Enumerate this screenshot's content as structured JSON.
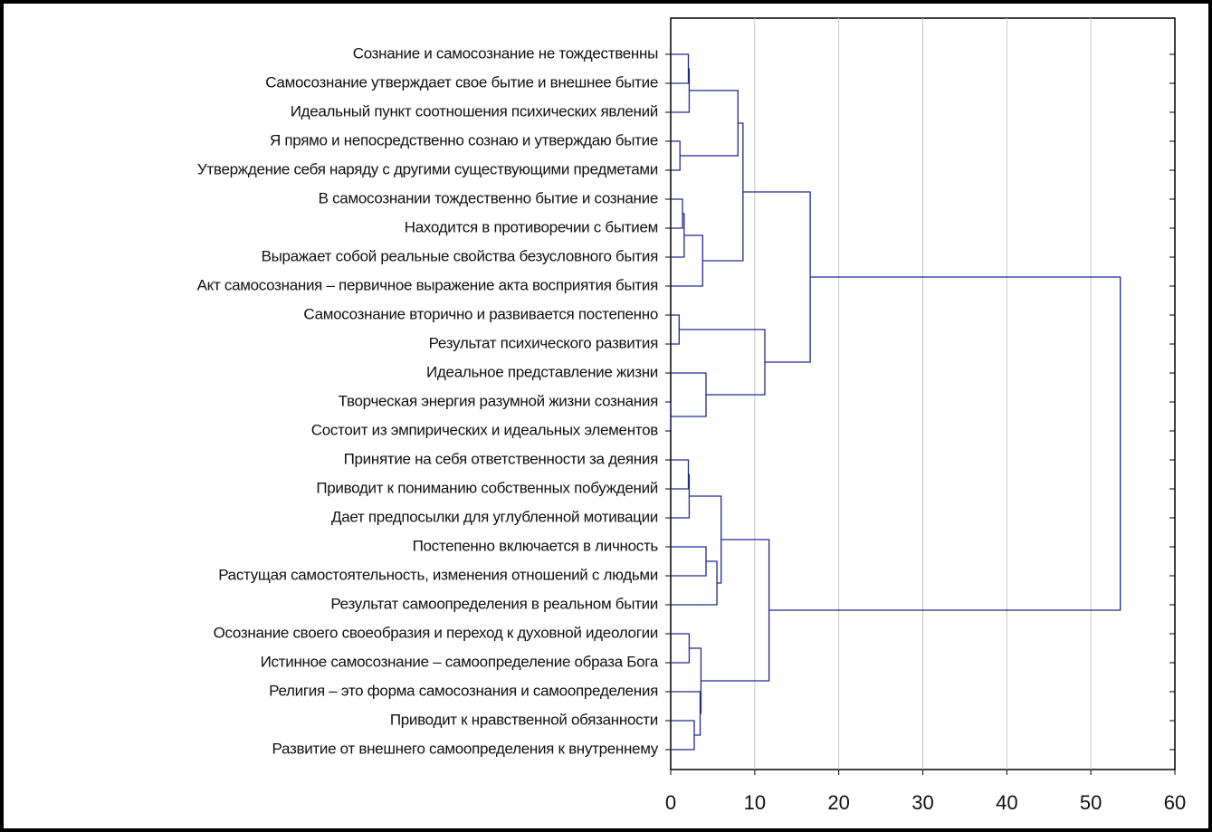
{
  "chart_data": {
    "type": "dendrogram",
    "categories": [
      "Сознание и самосознание не тождественны",
      "Самосознание утверждает свое бытие и внешнее бытие",
      "Идеальный пункт соотношения психических явлений",
      "Я прямо и непосредственно сознаю и утверждаю бытие",
      "Утверждение себя наряду с другими существующими предметами",
      "В самосознании тождественно бытие и сознание",
      "Находится в противоречии с бытием",
      "Выражает собой реальные свойства безусловного бытия",
      "Акт самосознания – первичное выражение акта восприятия бытия",
      "Самосознание вторично и развивается постепенно",
      "Результат психического развития",
      "Идеальное представление жизни",
      "Творческая энергия разумной жизни сознания",
      "Состоит из эмпирических и идеальных элементов",
      "Принятие на себя ответственности за деяния",
      "Приводит к пониманию собственных побуждений",
      "Дает предпосылки для углубленной мотивации",
      "Постепенно включается в личность",
      "Растущая самостоятельность, изменения отношений с людьми",
      "Результат самоопределения в реальном бытии",
      "Осознание своего своеобразия и переход к духовной идеологии",
      "Истинное самосознание – самоопределение образа Бога",
      "Религия – это форма самосознания и самоопределения",
      "Приводит к нравственной обязанности",
      "Развитие от внешнего самоопределения к внутреннему"
    ],
    "merges": [
      {
        "left": 0,
        "right": 1,
        "height": 2.1
      },
      {
        "left": 25,
        "right": 2,
        "height": 2.2
      },
      {
        "left": 3,
        "right": 4,
        "height": 1.1
      },
      {
        "left": 26,
        "right": 27,
        "height": 8.0
      },
      {
        "left": 5,
        "right": 6,
        "height": 1.4
      },
      {
        "left": 29,
        "right": 7,
        "height": 1.6
      },
      {
        "left": 30,
        "right": 8,
        "height": 3.8
      },
      {
        "left": 28,
        "right": 31,
        "height": 8.6
      },
      {
        "left": 9,
        "right": 10,
        "height": 1.0
      },
      {
        "left": 12,
        "right": 13,
        "height": 0
      },
      {
        "left": 11,
        "right": 34,
        "height": 4.2
      },
      {
        "left": 33,
        "right": 35,
        "height": 11.2
      },
      {
        "left": 32,
        "right": 36,
        "height": 16.6
      },
      {
        "left": 14,
        "right": 15,
        "height": 2.1
      },
      {
        "left": 38,
        "right": 16,
        "height": 2.2
      },
      {
        "left": 17,
        "right": 18,
        "height": 4.2
      },
      {
        "left": 40,
        "right": 19,
        "height": 5.5
      },
      {
        "left": 39,
        "right": 41,
        "height": 6.0
      },
      {
        "left": 20,
        "right": 21,
        "height": 2.2
      },
      {
        "left": 23,
        "right": 24,
        "height": 2.8
      },
      {
        "left": 22,
        "right": 44,
        "height": 3.5
      },
      {
        "left": 43,
        "right": 45,
        "height": 3.6
      },
      {
        "left": 42,
        "right": 46,
        "height": 11.7
      },
      {
        "left": 37,
        "right": 47,
        "height": 53.5
      }
    ],
    "color": "#1f2a8c",
    "xlim": [
      0,
      60
    ],
    "xticks": [
      0,
      10,
      20,
      30,
      40,
      50,
      60
    ],
    "grid": true
  }
}
